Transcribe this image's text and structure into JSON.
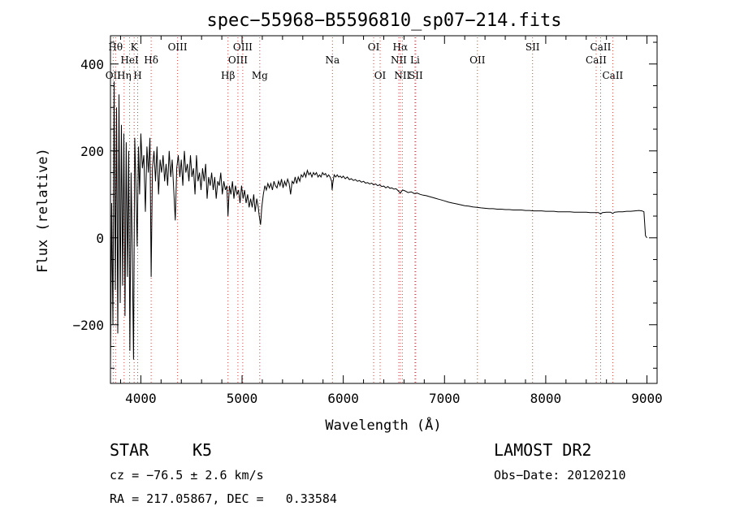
{
  "chart_data": {
    "type": "line",
    "title": "spec−55968−B5596810_sp07−214.fits",
    "xlabel": "Wavelength (Å)",
    "ylabel": "Flux (relative)",
    "xlim": [
      3700,
      9100
    ],
    "ylim": [
      -335,
      465
    ],
    "x_ticks": [
      4000,
      5000,
      6000,
      7000,
      8000,
      9000
    ],
    "y_ticks": [
      -200,
      0,
      200,
      400
    ],
    "grid": false,
    "series": [
      {
        "values": [
          [
            3700,
            -300
          ],
          [
            3712,
            80
          ],
          [
            3724,
            -200
          ],
          [
            3736,
            360
          ],
          [
            3748,
            -120
          ],
          [
            3760,
            300
          ],
          [
            3772,
            -220
          ],
          [
            3784,
            330
          ],
          [
            3796,
            -150
          ],
          [
            3808,
            260
          ],
          [
            3820,
            -110
          ],
          [
            3832,
            240
          ],
          [
            3844,
            -180
          ],
          [
            3856,
            220
          ],
          [
            3868,
            -90
          ],
          [
            3880,
            200
          ],
          [
            3892,
            -260
          ],
          [
            3904,
            150
          ],
          [
            3916,
            -40
          ],
          [
            3928,
            -280
          ],
          [
            3940,
            230
          ],
          [
            3952,
            120
          ],
          [
            3964,
            -20
          ],
          [
            3976,
            210
          ],
          [
            3988,
            100
          ],
          [
            4000,
            240
          ],
          [
            4015,
            160
          ],
          [
            4030,
            190
          ],
          [
            4045,
            60
          ],
          [
            4060,
            210
          ],
          [
            4075,
            150
          ],
          [
            4090,
            230
          ],
          [
            4102,
            -90
          ],
          [
            4115,
            160
          ],
          [
            4130,
            200
          ],
          [
            4145,
            130
          ],
          [
            4160,
            210
          ],
          [
            4175,
            100
          ],
          [
            4190,
            180
          ],
          [
            4205,
            150
          ],
          [
            4220,
            190
          ],
          [
            4235,
            130
          ],
          [
            4250,
            170
          ],
          [
            4265,
            120
          ],
          [
            4280,
            200
          ],
          [
            4295,
            140
          ],
          [
            4310,
            180
          ],
          [
            4325,
            110
          ],
          [
            4340,
            40
          ],
          [
            4355,
            160
          ],
          [
            4370,
            190
          ],
          [
            4385,
            140
          ],
          [
            4400,
            180
          ],
          [
            4415,
            120
          ],
          [
            4430,
            200
          ],
          [
            4445,
            150
          ],
          [
            4460,
            170
          ],
          [
            4475,
            130
          ],
          [
            4490,
            190
          ],
          [
            4505,
            140
          ],
          [
            4520,
            160
          ],
          [
            4535,
            100
          ],
          [
            4550,
            190
          ],
          [
            4565,
            130
          ],
          [
            4580,
            150
          ],
          [
            4595,
            110
          ],
          [
            4610,
            160
          ],
          [
            4625,
            130
          ],
          [
            4640,
            170
          ],
          [
            4655,
            90
          ],
          [
            4670,
            140
          ],
          [
            4685,
            120
          ],
          [
            4700,
            150
          ],
          [
            4715,
            110
          ],
          [
            4730,
            140
          ],
          [
            4745,
            90
          ],
          [
            4760,
            130
          ],
          [
            4775,
            120
          ],
          [
            4790,
            150
          ],
          [
            4805,
            100
          ],
          [
            4820,
            130
          ],
          [
            4835,
            110
          ],
          [
            4850,
            120
          ],
          [
            4861,
            50
          ],
          [
            4875,
            120
          ],
          [
            4890,
            100
          ],
          [
            4905,
            130
          ],
          [
            4920,
            90
          ],
          [
            4935,
            120
          ],
          [
            4950,
            100
          ],
          [
            4965,
            110
          ],
          [
            4980,
            80
          ],
          [
            4995,
            120
          ],
          [
            5010,
            90
          ],
          [
            5025,
            110
          ],
          [
            5040,
            80
          ],
          [
            5055,
            100
          ],
          [
            5070,
            70
          ],
          [
            5085,
            90
          ],
          [
            5100,
            70
          ],
          [
            5115,
            100
          ],
          [
            5130,
            60
          ],
          [
            5145,
            90
          ],
          [
            5160,
            70
          ],
          [
            5170,
            50
          ],
          [
            5183,
            30
          ],
          [
            5195,
            70
          ],
          [
            5210,
            100
          ],
          [
            5225,
            120
          ],
          [
            5240,
            110
          ],
          [
            5255,
            125
          ],
          [
            5270,
            115
          ],
          [
            5285,
            125
          ],
          [
            5300,
            110
          ],
          [
            5315,
            130
          ],
          [
            5330,
            120
          ],
          [
            5345,
            115
          ],
          [
            5360,
            130
          ],
          [
            5375,
            120
          ],
          [
            5390,
            135
          ],
          [
            5405,
            115
          ],
          [
            5420,
            130
          ],
          [
            5435,
            120
          ],
          [
            5450,
            135
          ],
          [
            5465,
            125
          ],
          [
            5480,
            100
          ],
          [
            5495,
            130
          ],
          [
            5510,
            125
          ],
          [
            5525,
            140
          ],
          [
            5540,
            125
          ],
          [
            5555,
            140
          ],
          [
            5570,
            130
          ],
          [
            5585,
            145
          ],
          [
            5600,
            140
          ],
          [
            5615,
            150
          ],
          [
            5630,
            140
          ],
          [
            5645,
            155
          ],
          [
            5660,
            145
          ],
          [
            5675,
            150
          ],
          [
            5690,
            140
          ],
          [
            5705,
            150
          ],
          [
            5720,
            145
          ],
          [
            5735,
            150
          ],
          [
            5750,
            140
          ],
          [
            5765,
            145
          ],
          [
            5780,
            140
          ],
          [
            5795,
            150
          ],
          [
            5810,
            145
          ],
          [
            5825,
            148
          ],
          [
            5840,
            140
          ],
          [
            5855,
            145
          ],
          [
            5870,
            140
          ],
          [
            5885,
            130
          ],
          [
            5890,
            110
          ],
          [
            5896,
            125
          ],
          [
            5910,
            145
          ],
          [
            5925,
            140
          ],
          [
            5940,
            145
          ],
          [
            5955,
            140
          ],
          [
            5970,
            142
          ],
          [
            5985,
            138
          ],
          [
            6000,
            142
          ],
          [
            6020,
            136
          ],
          [
            6040,
            140
          ],
          [
            6060,
            134
          ],
          [
            6080,
            136
          ],
          [
            6100,
            132
          ],
          [
            6120,
            134
          ],
          [
            6140,
            130
          ],
          [
            6160,
            132
          ],
          [
            6180,
            128
          ],
          [
            6200,
            130
          ],
          [
            6220,
            126
          ],
          [
            6240,
            127
          ],
          [
            6260,
            124
          ],
          [
            6280,
            126
          ],
          [
            6300,
            122
          ],
          [
            6320,
            124
          ],
          [
            6340,
            120
          ],
          [
            6360,
            122
          ],
          [
            6380,
            118
          ],
          [
            6400,
            119
          ],
          [
            6420,
            115
          ],
          [
            6440,
            118
          ],
          [
            6460,
            114
          ],
          [
            6480,
            115
          ],
          [
            6500,
            112
          ],
          [
            6520,
            113
          ],
          [
            6540,
            109
          ],
          [
            6563,
            103
          ],
          [
            6585,
            110
          ],
          [
            6610,
            108
          ],
          [
            6640,
            104
          ],
          [
            6670,
            106
          ],
          [
            6700,
            102
          ],
          [
            6730,
            103
          ],
          [
            6760,
            100
          ],
          [
            6790,
            98
          ],
          [
            6820,
            97
          ],
          [
            6850,
            95
          ],
          [
            6880,
            93
          ],
          [
            6910,
            91
          ],
          [
            6940,
            89
          ],
          [
            6970,
            87
          ],
          [
            7000,
            85
          ],
          [
            7040,
            82
          ],
          [
            7080,
            80
          ],
          [
            7120,
            78
          ],
          [
            7160,
            76
          ],
          [
            7200,
            74
          ],
          [
            7240,
            73
          ],
          [
            7280,
            71
          ],
          [
            7320,
            70
          ],
          [
            7360,
            69
          ],
          [
            7400,
            68
          ],
          [
            7440,
            67
          ],
          [
            7480,
            67
          ],
          [
            7520,
            66
          ],
          [
            7560,
            66
          ],
          [
            7600,
            65
          ],
          [
            7640,
            65
          ],
          [
            7680,
            64
          ],
          [
            7720,
            64
          ],
          [
            7760,
            64
          ],
          [
            7800,
            63
          ],
          [
            7840,
            63
          ],
          [
            7880,
            62
          ],
          [
            7920,
            62
          ],
          [
            7960,
            62
          ],
          [
            8000,
            61
          ],
          [
            8040,
            61
          ],
          [
            8080,
            61
          ],
          [
            8120,
            60
          ],
          [
            8160,
            60
          ],
          [
            8200,
            60
          ],
          [
            8240,
            60
          ],
          [
            8280,
            59
          ],
          [
            8320,
            59
          ],
          [
            8360,
            59
          ],
          [
            8400,
            59
          ],
          [
            8440,
            58
          ],
          [
            8480,
            58
          ],
          [
            8520,
            58
          ],
          [
            8542,
            55
          ],
          [
            8560,
            58
          ],
          [
            8600,
            59
          ],
          [
            8640,
            59
          ],
          [
            8662,
            56
          ],
          [
            8680,
            59
          ],
          [
            8720,
            60
          ],
          [
            8760,
            60
          ],
          [
            8800,
            61
          ],
          [
            8840,
            61
          ],
          [
            8880,
            62
          ],
          [
            8920,
            63
          ],
          [
            8950,
            62
          ],
          [
            8970,
            60
          ],
          [
            8985,
            5
          ],
          [
            9000,
            0
          ]
        ]
      }
    ],
    "lines": [
      {
        "label": "OII",
        "x": 3727,
        "row": 3
      },
      {
        "label": "Hθ",
        "x": 3750,
        "row": 1
      },
      {
        "label": "Hη",
        "x": 3835,
        "row": 3
      },
      {
        "label": "HeI",
        "x": 3889,
        "row": 2
      },
      {
        "label": "K",
        "x": 3934,
        "row": 1
      },
      {
        "label": "H",
        "x": 3969,
        "row": 3
      },
      {
        "label": "Hδ",
        "x": 4102,
        "row": 2
      },
      {
        "label": "OIII",
        "x": 4363,
        "row": 1
      },
      {
        "label": "Hβ",
        "x": 4861,
        "row": 3
      },
      {
        "label": "OIII",
        "x": 4959,
        "row": 2
      },
      {
        "label": "OIII",
        "x": 5007,
        "row": 1
      },
      {
        "label": "Mg",
        "x": 5175,
        "row": 3
      },
      {
        "label": "Na",
        "x": 5893,
        "row": 2
      },
      {
        "label": "OI",
        "x": 6300,
        "row": 1
      },
      {
        "label": "OI",
        "x": 6364,
        "row": 3
      },
      {
        "label": "Hα",
        "x": 6563,
        "row": 1
      },
      {
        "label": "NII",
        "x": 6548,
        "row": 2
      },
      {
        "label": "NII",
        "x": 6583,
        "row": 3
      },
      {
        "label": "Li",
        "x": 6708,
        "row": 2
      },
      {
        "label": "SII",
        "x": 6716,
        "row": 3
      },
      {
        "label": "OII",
        "x": 7325,
        "row": 2
      },
      {
        "label": "SII",
        "x": 7870,
        "row": 1
      },
      {
        "label": "CaII",
        "x": 8498,
        "row": 2
      },
      {
        "label": "CaII",
        "x": 8542,
        "row": 1
      },
      {
        "label": "CaII",
        "x": 8662,
        "row": 3
      }
    ]
  },
  "info": {
    "class": "STAR",
    "subclass": "K5",
    "survey": "LAMOST DR2",
    "cz": "cz = −76.5 ± 2.6 km/s",
    "obs_date": "Obs−Date: 20120210",
    "coords": "RA = 217.05867, DEC =   0.33584"
  },
  "colors": {
    "spectrum": "#000000",
    "line_marker": "#d04040"
  }
}
